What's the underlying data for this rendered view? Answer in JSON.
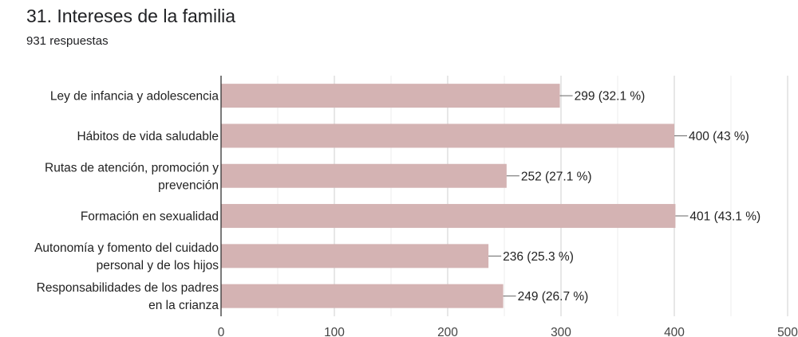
{
  "header": {
    "title": "31. Intereses de la familia",
    "responses": "931 respuestas"
  },
  "chart_data": {
    "type": "bar",
    "orientation": "horizontal",
    "categories": [
      [
        "Ley de infancia y adolescencia"
      ],
      [
        "Hábitos de vida saludable"
      ],
      [
        "Rutas de atención, promoción y",
        "prevención"
      ],
      [
        "Formación en sexualidad"
      ],
      [
        "Autonomía y fomento del cuidado",
        "personal y de los hijos"
      ],
      [
        "Responsabilidades de los padres",
        "en la crianza"
      ]
    ],
    "values": [
      299,
      400,
      252,
      401,
      236,
      249
    ],
    "data_labels": [
      "299 (32.1 %)",
      "400 (43 %)",
      "252 (27.1 %)",
      "401 (43.1 %)",
      "236 (25.3 %)",
      "249 (26.7 %)"
    ],
    "xlim": [
      0,
      500
    ],
    "xticks": [
      "0",
      "100",
      "200",
      "300",
      "400",
      "500"
    ],
    "grid": true,
    "bar_color": "#d4b3b3",
    "axis_color": "#333333",
    "grid_color": "#dddddd"
  }
}
